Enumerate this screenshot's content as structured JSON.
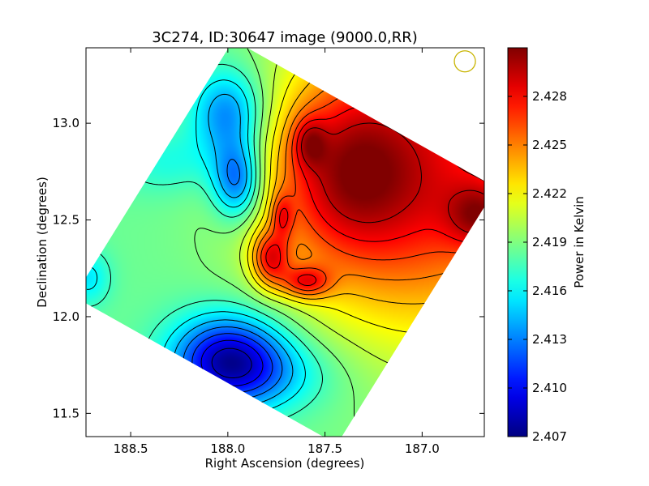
{
  "chart_data": {
    "type": "heatmap",
    "title": "3C274, ID:30647 image (9000.0,RR)",
    "xlabel": "Right Ascension (degrees)",
    "ylabel": "Declination (degrees)",
    "colorbar_label": "Power in Kelvin",
    "xlim": [
      188.73,
      186.68
    ],
    "ylim": [
      11.38,
      13.39
    ],
    "x_ticks": [
      {
        "value": 188.5,
        "label": "188.5"
      },
      {
        "value": 188.0,
        "label": "188.0"
      },
      {
        "value": 187.5,
        "label": "187.5"
      },
      {
        "value": 187.0,
        "label": "187.0"
      }
    ],
    "y_ticks": [
      {
        "value": 13.0,
        "label": "13.0"
      },
      {
        "value": 12.5,
        "label": "12.5"
      },
      {
        "value": 12.0,
        "label": "12.0"
      },
      {
        "value": 11.5,
        "label": "11.5"
      }
    ],
    "colorbar_range": [
      2.407,
      2.431
    ],
    "colorbar_ticks": [
      {
        "value": 2.407,
        "label": "2.407"
      },
      {
        "value": 2.41,
        "label": "2.410"
      },
      {
        "value": 2.413,
        "label": "2.413"
      },
      {
        "value": 2.416,
        "label": "2.416"
      },
      {
        "value": 2.419,
        "label": "2.419"
      },
      {
        "value": 2.422,
        "label": "2.422"
      },
      {
        "value": 2.425,
        "label": "2.425"
      },
      {
        "value": 2.428,
        "label": "2.428"
      }
    ],
    "colormap": "jet",
    "contours": "black",
    "grid": false,
    "background_level": 2.4185,
    "features": [
      {
        "type": "low",
        "ra": 188.0,
        "dec": 11.78,
        "amp": -0.0095,
        "sx": 0.2,
        "sy": 0.16
      },
      {
        "type": "low",
        "ra": 187.8,
        "dec": 11.7,
        "amp": -0.003,
        "sx": 0.26,
        "sy": 0.14
      },
      {
        "type": "low",
        "ra": 187.95,
        "dec": 12.7,
        "amp": -0.007,
        "sx": 0.09,
        "sy": 0.14
      },
      {
        "type": "low",
        "ra": 188.0,
        "dec": 13.05,
        "amp": -0.006,
        "sx": 0.13,
        "sy": 0.16
      },
      {
        "type": "low",
        "ra": 188.3,
        "dec": 12.8,
        "amp": -0.002,
        "sx": 0.2,
        "sy": 0.12
      },
      {
        "type": "low",
        "ra": 188.72,
        "dec": 12.2,
        "amp": -0.003,
        "sx": 0.08,
        "sy": 0.1
      },
      {
        "type": "high",
        "ra": 186.95,
        "dec": 12.75,
        "amp": 0.009,
        "sx": 0.5,
        "sy": 0.6
      },
      {
        "type": "high",
        "ra": 187.4,
        "dec": 12.85,
        "amp": 0.0045,
        "sx": 0.25,
        "sy": 0.3
      },
      {
        "type": "high",
        "ra": 187.58,
        "dec": 12.9,
        "amp": 0.004,
        "sx": 0.06,
        "sy": 0.09
      },
      {
        "type": "high",
        "ra": 187.6,
        "dec": 12.18,
        "amp": 0.006,
        "sx": 0.09,
        "sy": 0.06
      },
      {
        "type": "high",
        "ra": 187.78,
        "dec": 12.3,
        "amp": 0.007,
        "sx": 0.07,
        "sy": 0.1
      },
      {
        "type": "high",
        "ra": 187.72,
        "dec": 12.52,
        "amp": 0.004,
        "sx": 0.04,
        "sy": 0.08
      },
      {
        "type": "high",
        "ra": 186.7,
        "dec": 12.52,
        "amp": 0.005,
        "sx": 0.12,
        "sy": 0.12
      },
      {
        "type": "high",
        "ra": 187.45,
        "dec": 12.55,
        "amp": 0.003,
        "sx": 0.3,
        "sy": 0.3
      }
    ],
    "beam_marker": {
      "ra": 186.78,
      "dec": 13.32,
      "color": "#c8b400"
    }
  }
}
